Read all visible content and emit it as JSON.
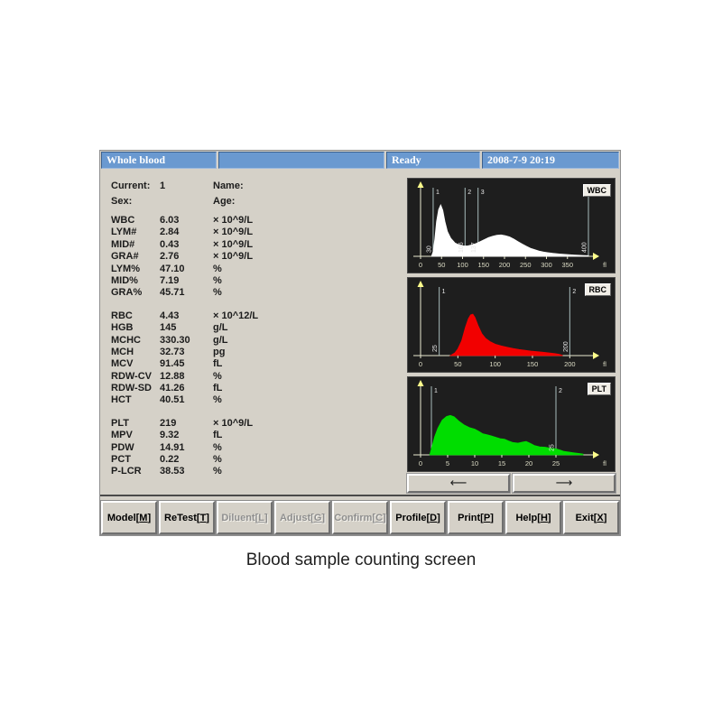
{
  "header": {
    "sample_mode": "Whole blood",
    "message": "",
    "status": "Ready",
    "datetime": "2008-7-9 20:19"
  },
  "patient": {
    "current_label": "Current:",
    "current_value": "1",
    "name_label": "Name:",
    "name_value": "",
    "sex_label": "Sex:",
    "sex_value": "",
    "age_label": "Age:",
    "age_value": ""
  },
  "results": {
    "wbc_group": [
      {
        "label": "WBC",
        "value": "6.03",
        "unit": "× 10^9/L"
      },
      {
        "label": "LYM#",
        "value": "2.84",
        "unit": "× 10^9/L"
      },
      {
        "label": "MID#",
        "value": "0.43",
        "unit": "× 10^9/L"
      },
      {
        "label": "GRA#",
        "value": "2.76",
        "unit": "× 10^9/L"
      },
      {
        "label": "LYM%",
        "value": "47.10",
        "unit": "%"
      },
      {
        "label": "MID%",
        "value": "7.19",
        "unit": "%"
      },
      {
        "label": "GRA%",
        "value": "45.71",
        "unit": "%"
      }
    ],
    "rbc_group": [
      {
        "label": "RBC",
        "value": "4.43",
        "unit": "× 10^12/L"
      },
      {
        "label": "HGB",
        "value": "145",
        "unit": "g/L"
      },
      {
        "label": "MCHC",
        "value": "330.30",
        "unit": "g/L"
      },
      {
        "label": "MCH",
        "value": "32.73",
        "unit": "pg"
      },
      {
        "label": "MCV",
        "value": "91.45",
        "unit": "fL"
      },
      {
        "label": "RDW-CV",
        "value": "12.88",
        "unit": "%"
      },
      {
        "label": "RDW-SD",
        "value": "41.26",
        "unit": "fL"
      },
      {
        "label": "HCT",
        "value": "40.51",
        "unit": "%"
      }
    ],
    "plt_group": [
      {
        "label": "PLT",
        "value": "219",
        "unit": "× 10^9/L"
      },
      {
        "label": "MPV",
        "value": "9.32",
        "unit": "fL"
      },
      {
        "label": "PDW",
        "value": "14.91",
        "unit": "%"
      },
      {
        "label": "PCT",
        "value": "0.22",
        "unit": "%"
      },
      {
        "label": "P-LCR",
        "value": "38.53",
        "unit": "%"
      }
    ]
  },
  "chart_data": [
    {
      "id": "wbc",
      "type": "area",
      "title": "WBC",
      "xlabel": "fl",
      "color": "#ffffff",
      "x_ticks": [
        0,
        50,
        100,
        150,
        200,
        250,
        300,
        350
      ],
      "x_max": 400,
      "y_axis": "relative cell count (heights 0-1, no scale shown)",
      "discriminators": [
        {
          "n": "1",
          "x": 30,
          "label": "30"
        },
        {
          "n": "2",
          "x": 106,
          "label": "106"
        },
        {
          "n": "3",
          "x": 137,
          "label": "137"
        },
        {
          "n": "4",
          "x": 400,
          "label": "400"
        }
      ],
      "points": [
        [
          26,
          0
        ],
        [
          30,
          0.07
        ],
        [
          34,
          0.26
        ],
        [
          38,
          0.52
        ],
        [
          43,
          0.7
        ],
        [
          48,
          0.77
        ],
        [
          53,
          0.69
        ],
        [
          58,
          0.52
        ],
        [
          64,
          0.37
        ],
        [
          72,
          0.27
        ],
        [
          82,
          0.2
        ],
        [
          92,
          0.17
        ],
        [
          102,
          0.155
        ],
        [
          112,
          0.155
        ],
        [
          122,
          0.17
        ],
        [
          132,
          0.19
        ],
        [
          142,
          0.22
        ],
        [
          152,
          0.25
        ],
        [
          162,
          0.28
        ],
        [
          172,
          0.3
        ],
        [
          182,
          0.315
        ],
        [
          192,
          0.32
        ],
        [
          202,
          0.31
        ],
        [
          212,
          0.29
        ],
        [
          222,
          0.26
        ],
        [
          232,
          0.22
        ],
        [
          242,
          0.185
        ],
        [
          252,
          0.15
        ],
        [
          262,
          0.12
        ],
        [
          272,
          0.1
        ],
        [
          282,
          0.08
        ],
        [
          292,
          0.065
        ],
        [
          302,
          0.055
        ],
        [
          315,
          0.045
        ],
        [
          330,
          0.035
        ],
        [
          345,
          0.028
        ],
        [
          360,
          0.022
        ],
        [
          375,
          0.016
        ],
        [
          390,
          0.012
        ],
        [
          400,
          0.01
        ]
      ]
    },
    {
      "id": "rbc",
      "type": "area",
      "title": "RBC",
      "xlabel": "fl",
      "color": "#f20000",
      "x_ticks": [
        0,
        50,
        100,
        150,
        200
      ],
      "x_max": 225,
      "y_axis": "relative cell count (heights 0-1, no scale shown)",
      "discriminators": [
        {
          "n": "1",
          "x": 25,
          "label": "25"
        },
        {
          "n": "2",
          "x": 200,
          "label": "200"
        }
      ],
      "points": [
        [
          40,
          0
        ],
        [
          46,
          0.04
        ],
        [
          50,
          0.1
        ],
        [
          55,
          0.22
        ],
        [
          60,
          0.42
        ],
        [
          64,
          0.55
        ],
        [
          67,
          0.61
        ],
        [
          70,
          0.62
        ],
        [
          73,
          0.57
        ],
        [
          77,
          0.45
        ],
        [
          82,
          0.33
        ],
        [
          87,
          0.26
        ],
        [
          93,
          0.21
        ],
        [
          100,
          0.17
        ],
        [
          108,
          0.145
        ],
        [
          116,
          0.125
        ],
        [
          124,
          0.105
        ],
        [
          132,
          0.09
        ],
        [
          140,
          0.08
        ],
        [
          148,
          0.068
        ],
        [
          156,
          0.058
        ],
        [
          164,
          0.05
        ],
        [
          172,
          0.04
        ],
        [
          180,
          0.03
        ],
        [
          186,
          0.018
        ],
        [
          190,
          0.004
        ]
      ]
    },
    {
      "id": "plt",
      "type": "area",
      "title": "PLT",
      "xlabel": "fl",
      "color": "#00dd00",
      "x_ticks": [
        0,
        5,
        10,
        15,
        20,
        25
      ],
      "x_max": 31,
      "y_axis": "relative cell count (heights 0-1, no scale shown)",
      "discriminators": [
        {
          "n": "1",
          "x": 2,
          "label": ""
        },
        {
          "n": "2",
          "x": 25,
          "label": "25"
        }
      ],
      "points": [
        [
          1.7,
          0
        ],
        [
          2.1,
          0.12
        ],
        [
          2.6,
          0.27
        ],
        [
          3.2,
          0.4
        ],
        [
          4,
          0.52
        ],
        [
          4.8,
          0.575
        ],
        [
          5.5,
          0.59
        ],
        [
          6.2,
          0.57
        ],
        [
          7,
          0.51
        ],
        [
          8,
          0.45
        ],
        [
          9,
          0.41
        ],
        [
          10,
          0.385
        ],
        [
          10.8,
          0.35
        ],
        [
          11.5,
          0.315
        ],
        [
          12.3,
          0.3
        ],
        [
          13,
          0.285
        ],
        [
          14,
          0.26
        ],
        [
          14.8,
          0.24
        ],
        [
          15.5,
          0.235
        ],
        [
          16.3,
          0.205
        ],
        [
          17,
          0.185
        ],
        [
          18,
          0.175
        ],
        [
          18.8,
          0.19
        ],
        [
          19.5,
          0.2
        ],
        [
          20.3,
          0.17
        ],
        [
          21,
          0.14
        ],
        [
          22,
          0.12
        ],
        [
          23,
          0.115
        ],
        [
          24,
          0.1
        ],
        [
          25,
          0.09
        ],
        [
          25.8,
          0.072
        ],
        [
          26.5,
          0.052
        ],
        [
          27.5,
          0.04
        ],
        [
          28.5,
          0.028
        ],
        [
          29.5,
          0.018
        ],
        [
          30,
          0.012
        ]
      ]
    }
  ],
  "histogram_nav": {
    "left_label": "⟵",
    "right_label": "⟶"
  },
  "toolbar": [
    {
      "label": "Model",
      "key": "M",
      "enabled": true
    },
    {
      "label": "ReTest",
      "key": "T",
      "enabled": true
    },
    {
      "label": "Diluent",
      "key": "L",
      "enabled": false
    },
    {
      "label": "Adjust",
      "key": "G",
      "enabled": false
    },
    {
      "label": "Confirm",
      "key": "C",
      "enabled": false
    },
    {
      "label": "Profile",
      "key": "D",
      "enabled": true
    },
    {
      "label": "Print",
      "key": "P",
      "enabled": true
    },
    {
      "label": "Help",
      "key": "H",
      "enabled": true
    },
    {
      "label": "Exit",
      "key": "X",
      "enabled": true
    }
  ],
  "colors": {
    "titlebar_blue": "#6a99d0",
    "panel_gray": "#d5d1c8",
    "chart_background": "#1e1e1e",
    "axis": "#e9e9d0",
    "axis_arrow": "#ffff8c",
    "discriminator_line": "#a8bcbc",
    "wbc_curve": "#ffffff",
    "rbc_curve": "#f20000",
    "plt_curve": "#00dd00"
  },
  "caption": "Blood sample counting screen"
}
